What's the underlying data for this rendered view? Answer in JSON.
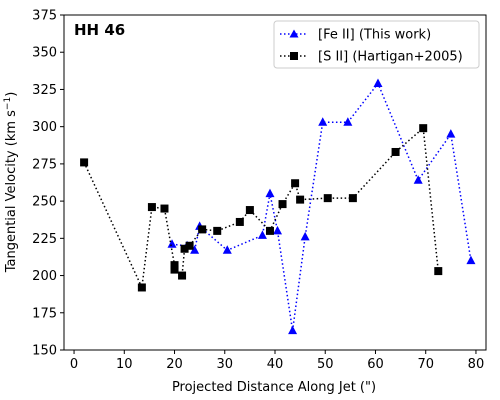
{
  "chart_data": {
    "type": "line",
    "title": "HH 46",
    "xlabel": "Projected Distance Along Jet (\")",
    "ylabel_main": "Tangential Velocity (km s",
    "ylabel_sup": "−1",
    "ylabel_close": ")",
    "xlim": [
      -2,
      82
    ],
    "ylim": [
      150,
      375
    ],
    "xticks": [
      0,
      10,
      20,
      30,
      40,
      50,
      60,
      70,
      80
    ],
    "yticks": [
      150,
      175,
      200,
      225,
      250,
      275,
      300,
      325,
      350,
      375
    ],
    "grid": false,
    "legend_position": "top-right",
    "series": [
      {
        "name": "[Fe II] (This work)",
        "color": "#0000ff",
        "marker": "triangle",
        "linestyle": "dotted",
        "points": [
          [
            19.5,
            221
          ],
          [
            22.5,
            220
          ],
          [
            24,
            217
          ],
          [
            25,
            233
          ],
          [
            30.5,
            217
          ],
          [
            37.5,
            227
          ],
          [
            39,
            255
          ],
          [
            40.5,
            230
          ],
          [
            43.5,
            163
          ],
          [
            46,
            226
          ],
          [
            49.5,
            303
          ],
          [
            54.5,
            303
          ],
          [
            60.5,
            329
          ],
          [
            68.5,
            264
          ],
          [
            75,
            295
          ],
          [
            79,
            210
          ]
        ]
      },
      {
        "name": "[S II] (Hartigan+2005)",
        "color": "#000000",
        "marker": "square",
        "linestyle": "dotted",
        "points": [
          [
            2,
            276
          ],
          [
            13.5,
            192
          ],
          [
            15.5,
            246
          ],
          [
            18,
            245
          ],
          [
            20,
            207
          ],
          [
            20,
            204
          ],
          [
            21.5,
            200
          ],
          [
            22,
            218
          ],
          [
            23,
            220
          ],
          [
            25.5,
            231
          ],
          [
            28.5,
            230
          ],
          [
            33,
            236
          ],
          [
            35,
            244
          ],
          [
            39,
            230
          ],
          [
            41.5,
            248
          ],
          [
            44,
            262
          ],
          [
            45,
            251
          ],
          [
            50.5,
            252
          ],
          [
            55.5,
            252
          ],
          [
            64,
            283
          ],
          [
            69.5,
            299
          ],
          [
            72.5,
            203
          ]
        ]
      }
    ]
  }
}
